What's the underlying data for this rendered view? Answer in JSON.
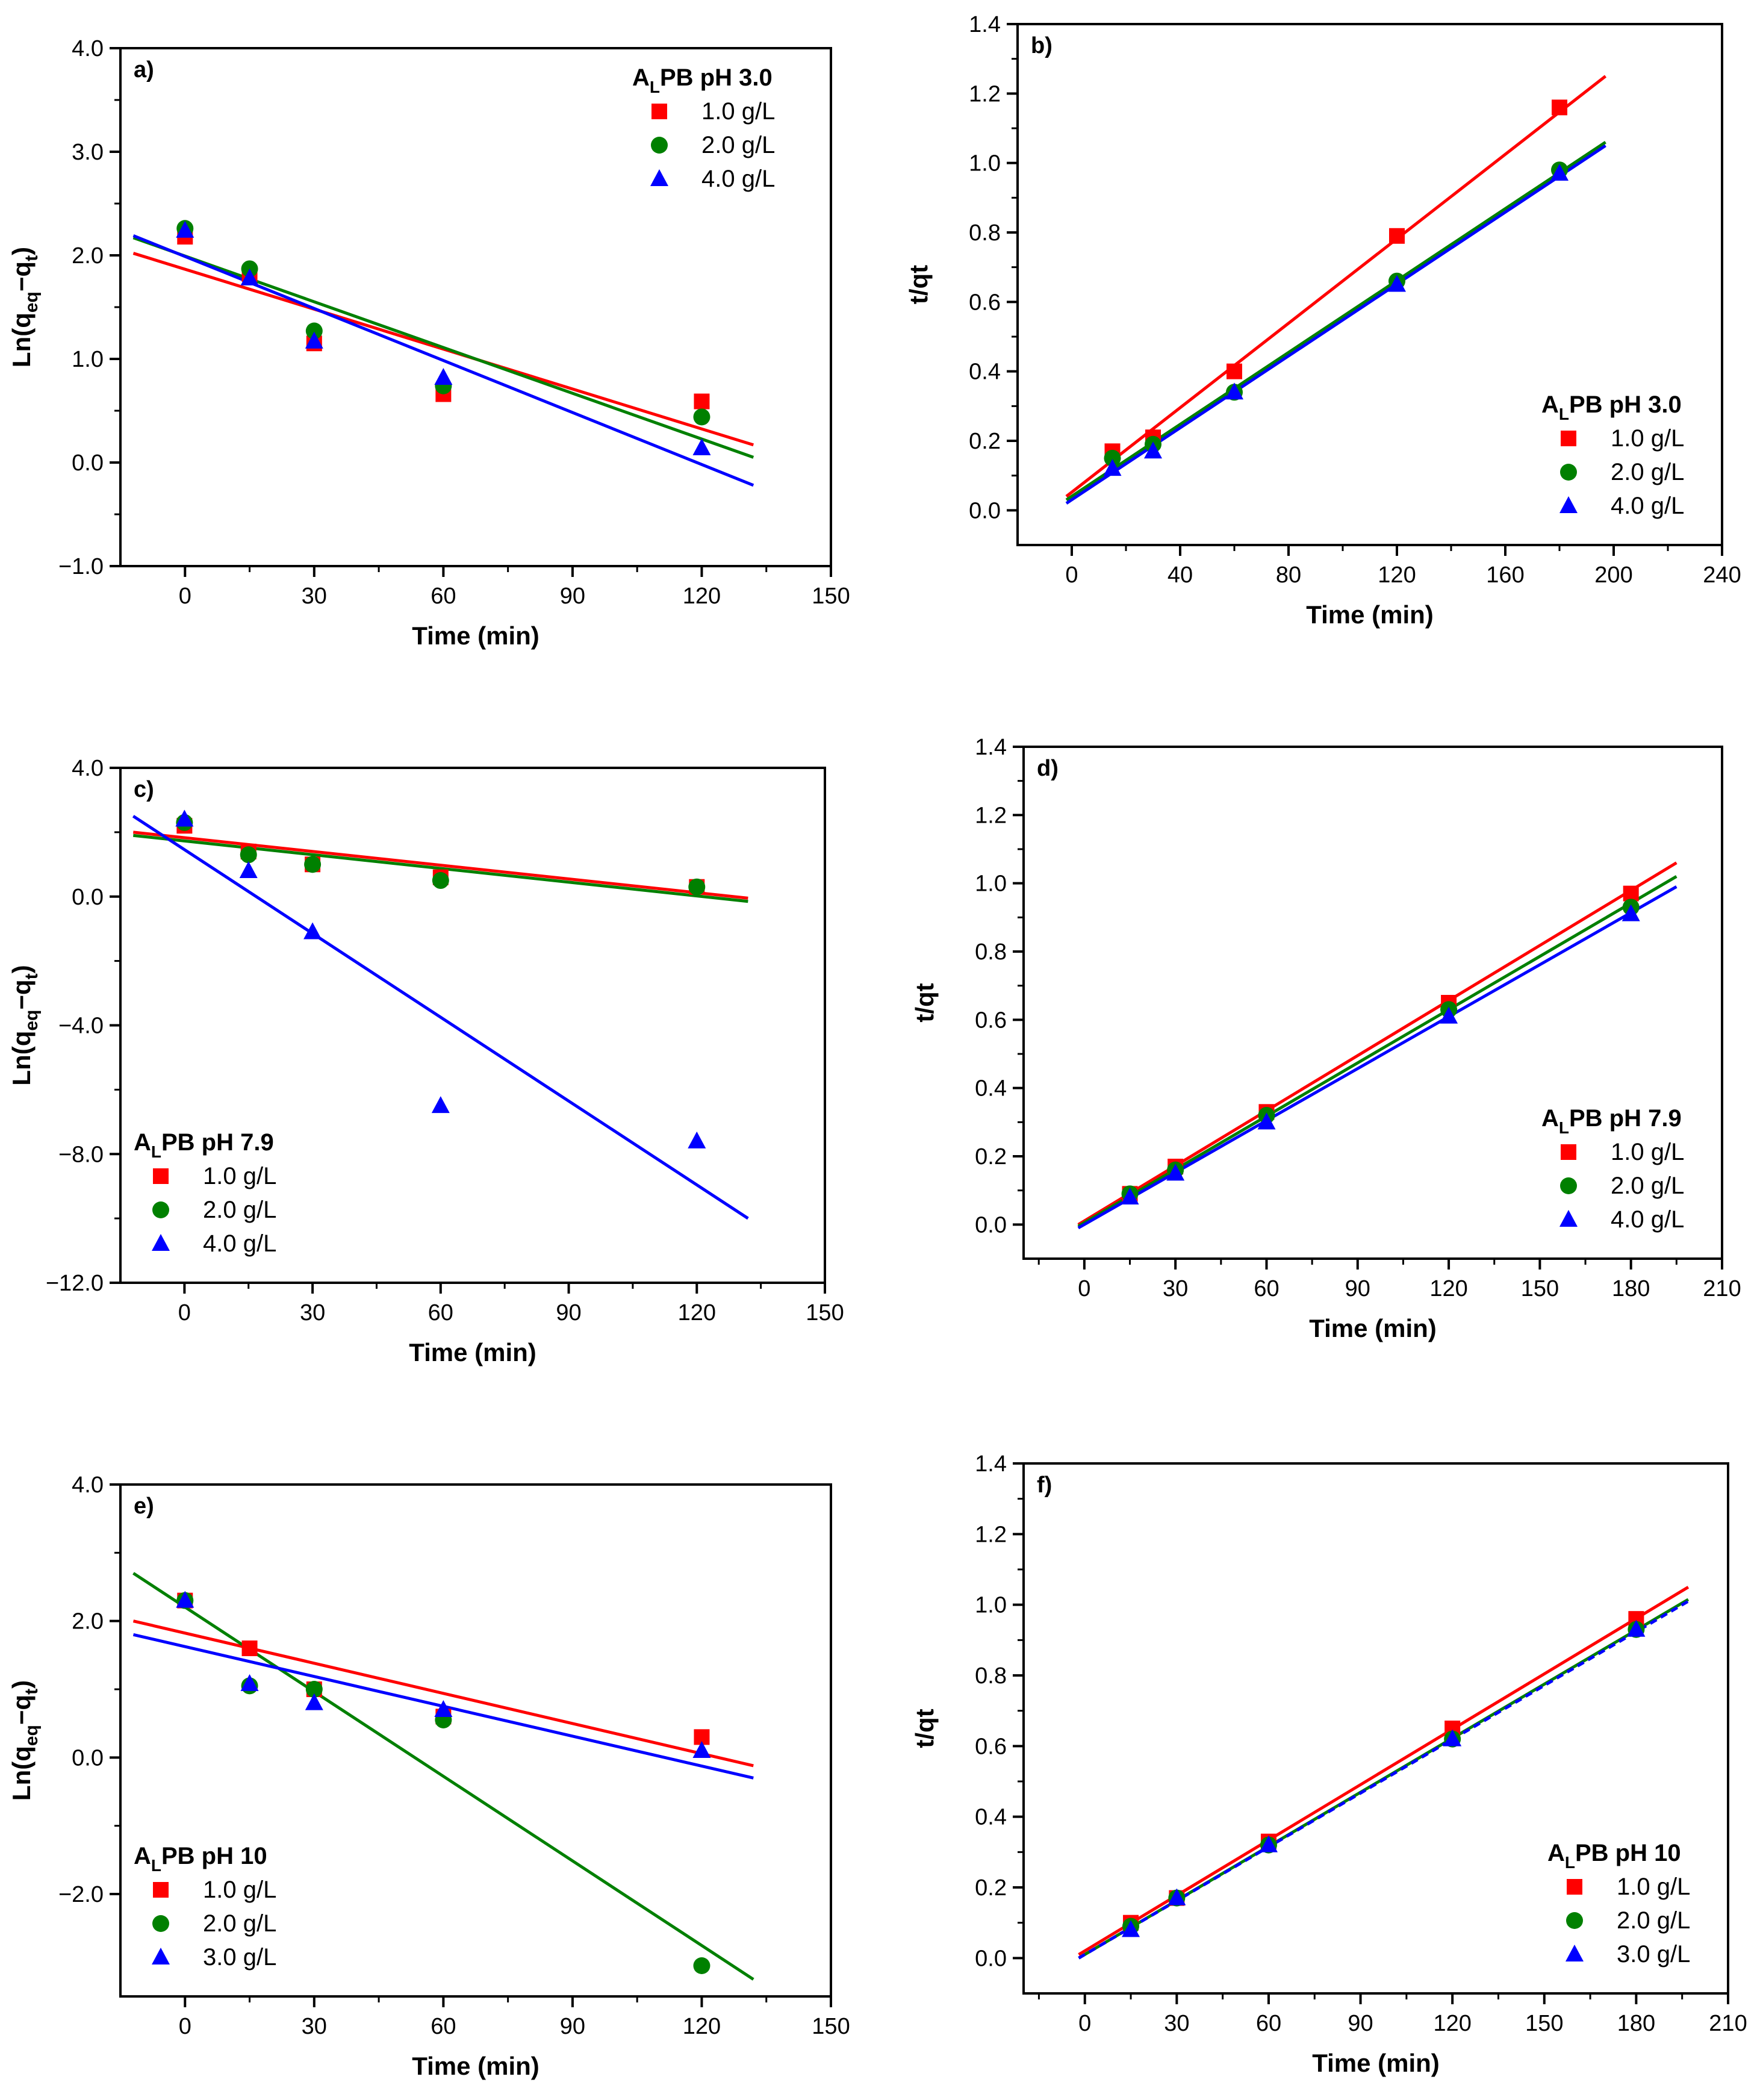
{
  "colors": {
    "red": "#ff0000",
    "green": "#008000",
    "blue": "#0000ff",
    "axis": "#000000"
  },
  "chart_data": [
    {
      "id": "a",
      "type": "scatter",
      "panel_label": "a)",
      "xlabel": "Time (min)",
      "ylabel_main": "Ln(q",
      "ylabel_sub1": "eq",
      "ylabel_mid": "−q",
      "ylabel_sub2": "t",
      "ylabel_end": ")",
      "xlim": [
        -15,
        150
      ],
      "ylim": [
        -1.0,
        4.0
      ],
      "xticks": [
        0,
        30,
        60,
        90,
        120,
        150
      ],
      "yticks": [
        -1.0,
        0.0,
        1.0,
        2.0,
        3.0,
        4.0
      ],
      "xtick_labels": [
        "0",
        "30",
        "60",
        "90",
        "120",
        "150"
      ],
      "ytick_labels": [
        "−1.0",
        "0.0",
        "1.0",
        "2.0",
        "3.0",
        "4.0"
      ],
      "legend": {
        "position": "top-right",
        "title_prefix": "A",
        "title_sub": "L",
        "title_suffix": "PB pH 3.0"
      },
      "series": [
        {
          "name": "1.0 g/L",
          "color": "red",
          "marker": "square",
          "x": [
            0,
            15,
            30,
            60,
            120
          ],
          "y": [
            2.18,
            1.82,
            1.15,
            0.66,
            0.59
          ],
          "fit": [
            [
              -12,
              2.02
            ],
            [
              132,
              0.17
            ]
          ]
        },
        {
          "name": "2.0 g/L",
          "color": "green",
          "marker": "circle",
          "x": [
            0,
            15,
            30,
            60,
            120
          ],
          "y": [
            2.26,
            1.87,
            1.27,
            0.74,
            0.44
          ],
          "fit": [
            [
              -12,
              2.17
            ],
            [
              132,
              0.05
            ]
          ]
        },
        {
          "name": "4.0 g/L",
          "color": "blue",
          "marker": "triangle",
          "x": [
            0,
            15,
            30,
            60,
            120
          ],
          "y": [
            2.24,
            1.78,
            1.17,
            0.82,
            0.14
          ],
          "fit": [
            [
              -12,
              2.19
            ],
            [
              132,
              -0.22
            ]
          ]
        }
      ]
    },
    {
      "id": "b",
      "type": "scatter",
      "panel_label": "b)",
      "xlabel": "Time (min)",
      "ylabel_main": "t/qt",
      "xlim": [
        -20,
        240
      ],
      "ylim": [
        -0.1,
        1.4
      ],
      "xticks": [
        0,
        40,
        80,
        120,
        160,
        200,
        240
      ],
      "yticks": [
        0.0,
        0.2,
        0.4,
        0.6,
        0.8,
        1.0,
        1.2,
        1.4
      ],
      "xtick_labels": [
        "0",
        "40",
        "80",
        "120",
        "160",
        "200",
        "240"
      ],
      "ytick_labels": [
        "0.0",
        "0.2",
        "0.4",
        "0.6",
        "0.8",
        "1.0",
        "1.2",
        "1.4"
      ],
      "legend": {
        "position": "bottom-right",
        "title_prefix": "A",
        "title_sub": "L",
        "title_suffix": "PB pH 3.0"
      },
      "series": [
        {
          "name": "1.0 g/L",
          "color": "red",
          "marker": "square",
          "x": [
            15,
            30,
            60,
            120,
            180
          ],
          "y": [
            0.17,
            0.21,
            0.4,
            0.79,
            1.16
          ],
          "fit": [
            [
              -2,
              0.04
            ],
            [
              197,
              1.25
            ]
          ]
        },
        {
          "name": "2.0 g/L",
          "color": "green",
          "marker": "circle",
          "x": [
            15,
            30,
            60,
            120,
            180
          ],
          "y": [
            0.15,
            0.19,
            0.34,
            0.66,
            0.98
          ],
          "fit": [
            [
              -2,
              0.03
            ],
            [
              197,
              1.06
            ]
          ]
        },
        {
          "name": "4.0 g/L",
          "color": "blue",
          "marker": "triangle",
          "x": [
            15,
            30,
            60,
            120,
            180
          ],
          "y": [
            0.12,
            0.17,
            0.34,
            0.65,
            0.97
          ],
          "fit": [
            [
              -2,
              0.02
            ],
            [
              197,
              1.05
            ]
          ]
        }
      ]
    },
    {
      "id": "c",
      "type": "scatter",
      "panel_label": "c)",
      "xlabel": "Time (min)",
      "ylabel_main": "Ln(q",
      "ylabel_sub1": "eq",
      "ylabel_mid": "−q",
      "ylabel_sub2": "t",
      "ylabel_end": ")",
      "xlim": [
        -15,
        150
      ],
      "ylim": [
        -12.0,
        4.0
      ],
      "xticks": [
        0,
        30,
        60,
        90,
        120,
        150
      ],
      "yticks": [
        -12.0,
        -8.0,
        -4.0,
        0.0,
        4.0
      ],
      "xtick_labels": [
        "0",
        "30",
        "60",
        "90",
        "120",
        "150"
      ],
      "ytick_labels": [
        "−12.0",
        "−8.0",
        "−4.0",
        "0.0",
        "4.0"
      ],
      "legend": {
        "position": "bottom-left",
        "title_prefix": "A",
        "title_sub": "L",
        "title_suffix": "PB pH 7.9"
      },
      "series": [
        {
          "name": "1.0 g/L",
          "color": "red",
          "marker": "square",
          "x": [
            0,
            15,
            30,
            60,
            120
          ],
          "y": [
            2.2,
            1.4,
            1.0,
            0.6,
            0.3
          ],
          "fit": [
            [
              -12,
              2.0
            ],
            [
              132,
              -0.05
            ]
          ]
        },
        {
          "name": "2.0 g/L",
          "color": "green",
          "marker": "circle",
          "x": [
            0,
            15,
            30,
            60,
            120
          ],
          "y": [
            2.3,
            1.3,
            1.0,
            0.5,
            0.3
          ],
          "fit": [
            [
              -12,
              1.9
            ],
            [
              132,
              -0.15
            ]
          ]
        },
        {
          "name": "4.0 g/L",
          "color": "blue",
          "marker": "triangle",
          "x": [
            0,
            15,
            30,
            60,
            120
          ],
          "y": [
            2.4,
            0.8,
            -1.1,
            -6.5,
            -7.6
          ],
          "fit": [
            [
              -12,
              2.5
            ],
            [
              132,
              -10.0
            ]
          ]
        }
      ]
    },
    {
      "id": "d",
      "type": "scatter",
      "panel_label": "d)",
      "xlabel": "Time (min)",
      "ylabel_main": "t/qt",
      "xlim": [
        -20,
        210
      ],
      "ylim": [
        -0.1,
        1.4
      ],
      "xticks": [
        0,
        30,
        60,
        90,
        120,
        150,
        180,
        210
      ],
      "yticks": [
        0.0,
        0.2,
        0.4,
        0.6,
        0.8,
        1.0,
        1.2,
        1.4
      ],
      "xtick_labels": [
        "0",
        "30",
        "60",
        "90",
        "120",
        "150",
        "180",
        "210"
      ],
      "ytick_labels": [
        "0.0",
        "0.2",
        "0.4",
        "0.6",
        "0.8",
        "1.0",
        "1.2",
        "1.4"
      ],
      "legend": {
        "position": "bottom-right",
        "title_prefix": "A",
        "title_sub": "L",
        "title_suffix": "PB pH 7.9"
      },
      "series": [
        {
          "name": "1.0 g/L",
          "color": "red",
          "marker": "square",
          "x": [
            15,
            30,
            60,
            120,
            180
          ],
          "y": [
            0.09,
            0.17,
            0.33,
            0.65,
            0.97
          ],
          "fit": [
            [
              -2,
              0.0
            ],
            [
              195,
              1.06
            ]
          ]
        },
        {
          "name": "2.0 g/L",
          "color": "green",
          "marker": "circle",
          "x": [
            15,
            30,
            60,
            120,
            180
          ],
          "y": [
            0.09,
            0.16,
            0.32,
            0.63,
            0.93
          ],
          "fit": [
            [
              -2,
              -0.005
            ],
            [
              195,
              1.02
            ]
          ]
        },
        {
          "name": "4.0 g/L",
          "color": "blue",
          "marker": "triangle",
          "x": [
            15,
            30,
            60,
            120,
            180
          ],
          "y": [
            0.08,
            0.15,
            0.3,
            0.61,
            0.91
          ],
          "fit": [
            [
              -2,
              -0.01
            ],
            [
              195,
              0.99
            ]
          ]
        }
      ]
    },
    {
      "id": "e",
      "type": "scatter",
      "panel_label": "e)",
      "xlabel": "Time (min)",
      "ylabel_main": "Ln(q",
      "ylabel_sub1": "eq",
      "ylabel_mid": "−q",
      "ylabel_sub2": "t",
      "ylabel_end": ")",
      "xlim": [
        -15,
        150
      ],
      "ylim": [
        -3.5,
        4.0
      ],
      "xticks": [
        0,
        30,
        60,
        90,
        120,
        150
      ],
      "yticks": [
        -2.0,
        0.0,
        2.0,
        4.0
      ],
      "xtick_labels": [
        "0",
        "30",
        "60",
        "90",
        "120",
        "150"
      ],
      "ytick_labels": [
        "−2.0",
        "0.0",
        "2.0",
        "4.0"
      ],
      "legend": {
        "position": "bottom-left",
        "title_prefix": "A",
        "title_sub": "L",
        "title_suffix": "PB pH 10"
      },
      "series": [
        {
          "name": "1.0 g/L",
          "color": "red",
          "marker": "square",
          "x": [
            0,
            15,
            30,
            60,
            120
          ],
          "y": [
            2.3,
            1.6,
            1.0,
            0.6,
            0.3
          ],
          "fit": [
            [
              -12,
              2.0
            ],
            [
              132,
              -0.12
            ]
          ]
        },
        {
          "name": "2.0 g/L",
          "color": "green",
          "marker": "circle",
          "x": [
            0,
            15,
            30,
            60,
            120
          ],
          "y": [
            2.3,
            1.05,
            1.0,
            0.55,
            -3.05
          ],
          "fit": [
            [
              -12,
              2.7
            ],
            [
              132,
              -3.25
            ]
          ]
        },
        {
          "name": "3.0 g/L",
          "color": "blue",
          "marker": "triangle",
          "x": [
            0,
            15,
            30,
            60,
            120
          ],
          "y": [
            2.3,
            1.08,
            0.8,
            0.7,
            0.1
          ],
          "fit": [
            [
              -12,
              1.8
            ],
            [
              132,
              -0.3
            ]
          ]
        }
      ]
    },
    {
      "id": "f",
      "type": "scatter",
      "panel_label": "f)",
      "xlabel": "Time (min)",
      "ylabel_main": "t/qt",
      "xlim": [
        -20,
        210
      ],
      "ylim": [
        -0.1,
        1.4
      ],
      "xticks": [
        0,
        30,
        60,
        90,
        120,
        150,
        180,
        210
      ],
      "yticks": [
        0.0,
        0.2,
        0.4,
        0.6,
        0.8,
        1.0,
        1.2,
        1.4
      ],
      "xtick_labels": [
        "0",
        "30",
        "60",
        "90",
        "120",
        "150",
        "180",
        "210"
      ],
      "ytick_labels": [
        "0.0",
        "0.2",
        "0.4",
        "0.6",
        "0.8",
        "1.0",
        "1.2",
        "1.4"
      ],
      "legend": {
        "position": "bottom-right",
        "title_prefix": "A",
        "title_sub": "L",
        "title_suffix": "PB pH 10"
      },
      "series": [
        {
          "name": "1.0 g/L",
          "color": "red",
          "marker": "square",
          "x": [
            15,
            30,
            60,
            120,
            180
          ],
          "y": [
            0.1,
            0.17,
            0.33,
            0.65,
            0.96
          ],
          "fit": [
            [
              -2,
              0.01
            ],
            [
              197,
              1.05
            ]
          ]
        },
        {
          "name": "2.0 g/L",
          "color": "green",
          "marker": "circle",
          "x": [
            15,
            30,
            60,
            120,
            180
          ],
          "y": [
            0.09,
            0.17,
            0.32,
            0.62,
            0.93
          ],
          "fit": [
            [
              -2,
              0.0
            ],
            [
              197,
              1.015
            ]
          ]
        },
        {
          "name": "3.0 g/L",
          "color": "blue",
          "marker": "triangle",
          "x": [
            15,
            30,
            60,
            120,
            180
          ],
          "y": [
            0.08,
            0.17,
            0.32,
            0.62,
            0.93
          ],
          "fit": [
            [
              -2,
              0.0
            ],
            [
              197,
              1.01
            ]
          ],
          "dashed": true
        }
      ]
    }
  ]
}
